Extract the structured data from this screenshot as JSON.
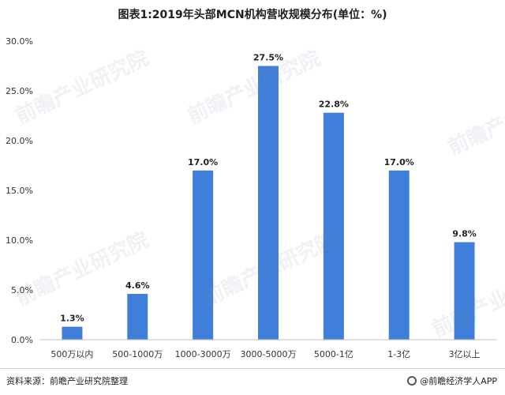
{
  "footer": {
    "source": "资料来源：前瞻产业研究院整理",
    "brand": "@前瞻经济学人APP"
  },
  "watermark": {
    "text": "前瞻产业研究院"
  },
  "chart_data": {
    "type": "bar",
    "title": "图表1:2019年头部MCN机构营收规模分布(单位：%)",
    "categories": [
      "500万以内",
      "500-1000万",
      "1000-3000万",
      "3000-5000万",
      "5000-1亿",
      "1-3亿",
      "3亿以上"
    ],
    "values": [
      1.3,
      4.6,
      17.0,
      27.5,
      22.8,
      17.0,
      9.8
    ],
    "value_labels": [
      "1.3%",
      "4.6%",
      "17.0%",
      "27.5%",
      "22.8%",
      "17.0%",
      "9.8%"
    ],
    "y_ticks": [
      0,
      5,
      10,
      15,
      20,
      25,
      30
    ],
    "y_tick_labels": [
      "0.0%",
      "5.0%",
      "10.0%",
      "15.0%",
      "20.0%",
      "25.0%",
      "30.0%"
    ],
    "ylim": [
      0,
      30
    ],
    "xlabel": "",
    "ylabel": "",
    "grid": false,
    "bar_color": "#3f7fd9"
  }
}
